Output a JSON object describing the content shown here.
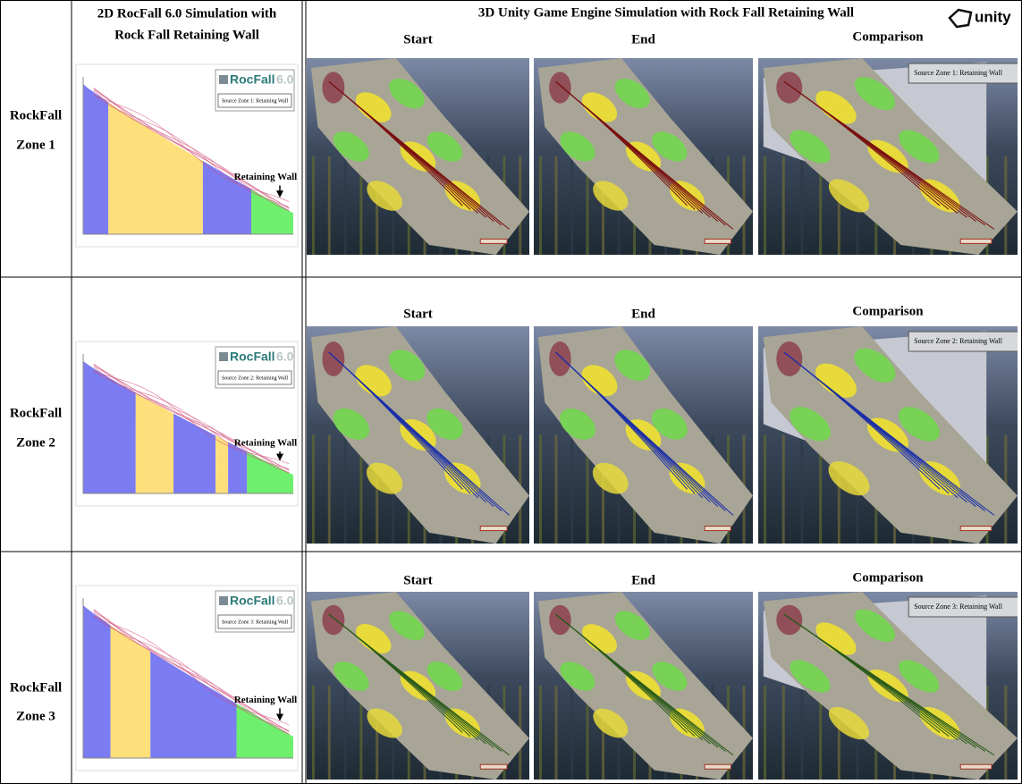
{
  "header": {
    "col2_title": [
      "2D RocFall 6.0 Simulation with",
      "Rock Fall Retaining Wall"
    ],
    "col3_title": "3D Unity Game Engine Simulation with Rock Fall Retaining Wall",
    "logo": "unity"
  },
  "rows": [
    {
      "label": [
        "RockFall",
        "Zone 1"
      ],
      "rocfall": {
        "logo": "RocFall",
        "version": "6.0",
        "source": "Source Zone 1: Retaining Wall",
        "annotation": "Retaining Wall"
      },
      "panels": [
        "Start",
        "End",
        "Comparison"
      ],
      "comparison_source": "Source Zone 1: Retaining Wall"
    },
    {
      "label": [
        "RockFall",
        "Zone 2"
      ],
      "rocfall": {
        "logo": "RocFall",
        "version": "6.0",
        "source": "Source Zone 2: Retaining Wall",
        "annotation": "Retaining Wall"
      },
      "panels": [
        "Start",
        "End",
        "Comparison"
      ],
      "comparison_source": "Source Zone 2: Retaining Wall"
    },
    {
      "label": [
        "RockFall",
        "Zone 3"
      ],
      "rocfall": {
        "logo": "RocFall",
        "version": "6.0",
        "source": "Source Zone 3: Retaining Wall",
        "annotation": "Retaining Wall"
      },
      "panels": [
        "Start",
        "End",
        "Comparison"
      ],
      "comparison_source": "Source Zone 3: Retaining Wall"
    }
  ]
}
